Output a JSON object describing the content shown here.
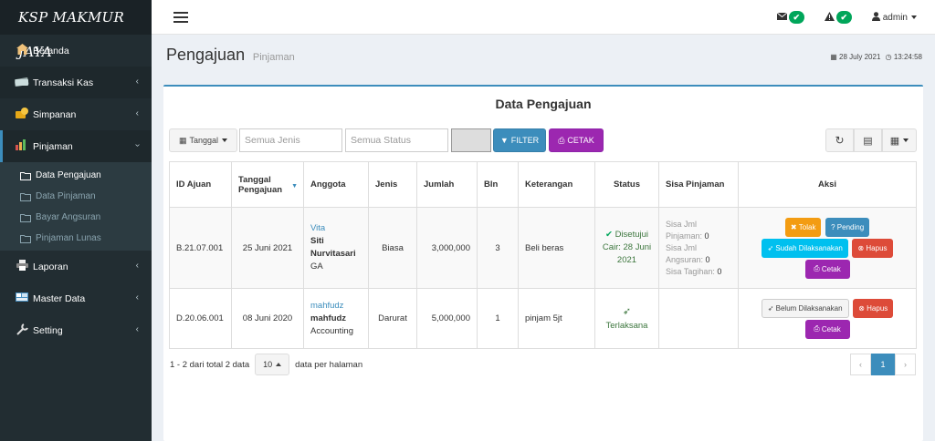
{
  "brand": "KSP MAKMUR JAYA",
  "sidebar": {
    "items": [
      {
        "label": "Beranda",
        "icon": "home-icon"
      },
      {
        "label": "Transaksi Kas",
        "icon": "money-icon"
      },
      {
        "label": "Simpanan",
        "icon": "coins-icon"
      },
      {
        "label": "Pinjaman",
        "icon": "chart-icon"
      },
      {
        "label": "Laporan",
        "icon": "print-icon"
      },
      {
        "label": "Master Data",
        "icon": "database-icon"
      },
      {
        "label": "Setting",
        "icon": "wrench-icon"
      }
    ],
    "subitems": [
      "Data Pengajuan",
      "Data Pinjaman",
      "Bayar Angsuran",
      "Pinjaman Lunas"
    ]
  },
  "topbar": {
    "user": "admin"
  },
  "header": {
    "title": "Pengajuan",
    "subtitle": "Pinjaman",
    "date": "28 July 2021",
    "time": "13:24:58"
  },
  "box": {
    "title": "Data Pengajuan"
  },
  "toolbar": {
    "date_button": "Tanggal",
    "jenis_placeholder": "Semua Jenis",
    "status_placeholder": "Semua Status",
    "filter_label": "FILTER",
    "cetak_label": "CETAK"
  },
  "table": {
    "headers": [
      "ID Ajuan",
      "Tanggal Pengajuan",
      "Anggota",
      "Jenis",
      "Jumlah",
      "Bln",
      "Keterangan",
      "Status",
      "Sisa Pinjaman",
      "Aksi"
    ],
    "rows": [
      {
        "id": "B.21.07.001",
        "tanggal": "25 Juni 2021",
        "anggota_user": "Vita",
        "anggota_name": "Siti Nurvitasari",
        "anggota_dept": "GA",
        "jenis": "Biasa",
        "jumlah": "3,000,000",
        "bln": "3",
        "keterangan": "Beli beras",
        "status": "Disetujui",
        "status_detail": "Cair: 28 Juni 2021",
        "sisa_jml_pinjaman": "Sisa Jml Pinjaman:",
        "sisa_jml_pinjaman_val": "0",
        "sisa_jml_angsuran": "Sisa Jml Angsuran:",
        "sisa_jml_angsuran_val": "0",
        "sisa_tagihan": "Sisa Tagihan:",
        "sisa_tagihan_val": "0",
        "actions": [
          "Tolak",
          "Pending",
          "Sudah Dilaksanakan",
          "Hapus",
          "Cetak"
        ]
      },
      {
        "id": "D.20.06.001",
        "tanggal": "08 Juni 2020",
        "anggota_user": "mahfudz",
        "anggota_name": "mahfudz",
        "anggota_dept": "Accounting",
        "jenis": "Darurat",
        "jumlah": "5,000,000",
        "bln": "1",
        "keterangan": "pinjam 5jt",
        "status": "Terlaksana",
        "actions": [
          "Belum Dilaksanakan",
          "Hapus",
          "Cetak"
        ]
      }
    ]
  },
  "footer": {
    "info": "1 - 2 dari total 2 data",
    "per_page": "10",
    "per_page_suffix": "data per halaman",
    "page": "1",
    "prev": "‹",
    "next": "›"
  },
  "colors": {
    "primary": "#3c8dbc",
    "sidebar": "#222d32",
    "purple": "#9c27b0",
    "success": "#00a65a",
    "danger": "#dd4b39",
    "warning": "#f39c12"
  }
}
